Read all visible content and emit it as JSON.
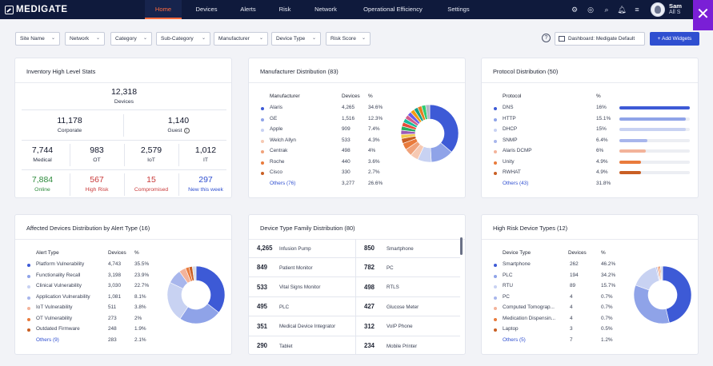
{
  "nav": {
    "logo": "MEDIGATE",
    "tabs": [
      "Home",
      "Devices",
      "Alerts",
      "Risk",
      "Network",
      "Operational Efficiency",
      "Settings"
    ],
    "active_tab": "Home",
    "user_name": "Sam",
    "user_sub": "All S"
  },
  "filters": [
    "Site Name",
    "Network",
    "Category",
    "Sub-Category",
    "Manufacturer",
    "Device Type",
    "Risk Score"
  ],
  "dashboard_select": "Dashboard: Medigate Default",
  "add_widgets_label": "+ Add Widgets",
  "inventory": {
    "title": "Inventory High Level Stats",
    "total": {
      "value": "12,318",
      "label": "Devices"
    },
    "corporate": {
      "value": "11,178",
      "label": "Corporate"
    },
    "guest": {
      "value": "1,140",
      "label": "Guest"
    },
    "medical": {
      "value": "7,744",
      "label": "Medical"
    },
    "ot": {
      "value": "983",
      "label": "OT"
    },
    "iot": {
      "value": "2,579",
      "label": "IoT"
    },
    "it": {
      "value": "1,012",
      "label": "IT"
    },
    "online": {
      "value": "7,884",
      "label": "Online"
    },
    "high_risk": {
      "value": "567",
      "label": "High Risk"
    },
    "compromised": {
      "value": "15",
      "label": "Compromised"
    },
    "new_week": {
      "value": "297",
      "label": "New this week"
    }
  },
  "manufacturer": {
    "title": "Manufacturer Distribution (83)",
    "headers": [
      "Manufacturer",
      "Devices",
      "%"
    ],
    "rows": [
      {
        "name": "Alaris",
        "devices": "4,265",
        "pct": "34.6%",
        "color": "#3d5ad6",
        "value": 34.6
      },
      {
        "name": "GE",
        "devices": "1,516",
        "pct": "12.3%",
        "color": "#8fa3e8",
        "value": 12.3
      },
      {
        "name": "Apple",
        "devices": "909",
        "pct": "7.4%",
        "color": "#c8d2f2",
        "value": 7.4
      },
      {
        "name": "Welch Allyn",
        "devices": "533",
        "pct": "4.3%",
        "color": "#f6c9b3",
        "value": 4.3
      },
      {
        "name": "Centrak",
        "devices": "498",
        "pct": "4%",
        "color": "#f0a27a",
        "value": 4.0
      },
      {
        "name": "Roche",
        "devices": "440",
        "pct": "3.6%",
        "color": "#e97b3c",
        "value": 3.6
      },
      {
        "name": "Cisco",
        "devices": "330",
        "pct": "2.7%",
        "color": "#c95f24",
        "value": 2.7
      }
    ],
    "others": {
      "name": "Others (76)",
      "devices": "3,277",
      "pct": "26.6%",
      "value": 26.6
    }
  },
  "protocol": {
    "title": "Protocol Distribution (50)",
    "headers": [
      "Protocol",
      "%"
    ],
    "rows": [
      {
        "name": "DNS",
        "pct": "16%",
        "value": 16,
        "color": "#3d5ad6"
      },
      {
        "name": "HTTP",
        "pct": "15.1%",
        "value": 15.1,
        "color": "#8fa3e8"
      },
      {
        "name": "DHCP",
        "pct": "15%",
        "value": 15,
        "color": "#c8d2f2"
      },
      {
        "name": "SNMP",
        "pct": "6.4%",
        "value": 6.4,
        "color": "#a8b6ec"
      },
      {
        "name": "Alaris DCMP",
        "pct": "6%",
        "value": 6,
        "color": "#f3b39a"
      },
      {
        "name": "Unity",
        "pct": "4.9%",
        "value": 4.9,
        "color": "#e97b3c"
      },
      {
        "name": "RWHAT",
        "pct": "4.9%",
        "value": 4.9,
        "color": "#c95f24"
      }
    ],
    "others": {
      "name": "Others (43)",
      "pct": "31.8%"
    }
  },
  "alerts": {
    "title": "Affected Devices Distribution by Alert Type (16)",
    "headers": [
      "Alert Type",
      "Devices",
      "%"
    ],
    "rows": [
      {
        "name": "Platform Vulnerability",
        "devices": "4,743",
        "pct": "35.5%",
        "value": 35.5,
        "color": "#3d5ad6"
      },
      {
        "name": "Functionality Recall",
        "devices": "3,198",
        "pct": "23.9%",
        "value": 23.9,
        "color": "#8fa3e8"
      },
      {
        "name": "Clinical Vulnerability",
        "devices": "3,030",
        "pct": "22.7%",
        "value": 22.7,
        "color": "#c8d2f2"
      },
      {
        "name": "Application Vulnerability",
        "devices": "1,081",
        "pct": "8.1%",
        "value": 8.1,
        "color": "#a8b6ec"
      },
      {
        "name": "IoT Vulnerability",
        "devices": "511",
        "pct": "3.8%",
        "value": 3.8,
        "color": "#f3b39a"
      },
      {
        "name": "OT Vulnerability",
        "devices": "273",
        "pct": "2%",
        "value": 2,
        "color": "#e97b3c"
      },
      {
        "name": "Outdated Firmware",
        "devices": "248",
        "pct": "1.9%",
        "value": 1.9,
        "color": "#c95f24"
      }
    ],
    "others": {
      "name": "Others (9)",
      "devices": "283",
      "pct": "2.1%",
      "value": 2.1
    }
  },
  "device_family": {
    "title": "Device Type Family Distribution (80)",
    "left": [
      {
        "count": "4,265",
        "name": "Infusion Pump"
      },
      {
        "count": "849",
        "name": "Patient Monitor"
      },
      {
        "count": "533",
        "name": "Vital Signs Monitor"
      },
      {
        "count": "495",
        "name": "PLC"
      },
      {
        "count": "351",
        "name": "Medical Device Integrator"
      },
      {
        "count": "290",
        "name": "Tablet"
      }
    ],
    "right": [
      {
        "count": "850",
        "name": "Smartphone"
      },
      {
        "count": "782",
        "name": "PC"
      },
      {
        "count": "498",
        "name": "RTLS"
      },
      {
        "count": "427",
        "name": "Glucose Meter"
      },
      {
        "count": "312",
        "name": "VoIP Phone"
      },
      {
        "count": "234",
        "name": "Mobile Printer"
      }
    ]
  },
  "high_risk": {
    "title": "High Risk Device Types (12)",
    "headers": [
      "Device Type",
      "Devices",
      "%"
    ],
    "rows": [
      {
        "name": "Smartphone",
        "devices": "262",
        "pct": "46.2%",
        "value": 46.2,
        "color": "#3d5ad6"
      },
      {
        "name": "PLC",
        "devices": "194",
        "pct": "34.2%",
        "value": 34.2,
        "color": "#8fa3e8"
      },
      {
        "name": "RTU",
        "devices": "89",
        "pct": "15.7%",
        "value": 15.7,
        "color": "#c8d2f2"
      },
      {
        "name": "PC",
        "devices": "4",
        "pct": "0.7%",
        "value": 0.7,
        "color": "#a8b6ec"
      },
      {
        "name": "Computed Tomograp...",
        "devices": "4",
        "pct": "0.7%",
        "value": 0.7,
        "color": "#f3b39a"
      },
      {
        "name": "Medication Dispensin...",
        "devices": "4",
        "pct": "0.7%",
        "value": 0.7,
        "color": "#e97b3c"
      },
      {
        "name": "Laptop",
        "devices": "3",
        "pct": "0.5%",
        "value": 0.5,
        "color": "#c95f24"
      }
    ],
    "others": {
      "name": "Others (5)",
      "devices": "7",
      "pct": "1.2%",
      "value": 1.2
    }
  },
  "icons": [
    "settings-gear-icon",
    "user-badge-icon",
    "search-icon",
    "bell-icon",
    "filter-icon"
  ]
}
